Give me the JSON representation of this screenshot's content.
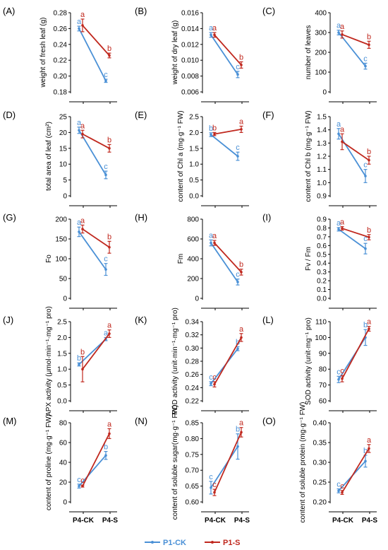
{
  "legend": {
    "items": [
      {
        "name": "P1-CK",
        "color": "#4a90d6"
      },
      {
        "name": "P1-S",
        "color": "#c0281e"
      }
    ]
  },
  "x_categories": [
    "P4-CK",
    "P4-S"
  ],
  "chart_data": [
    {
      "letter": "(A)",
      "type": "line",
      "ylabel": "weight of fresh leaf (g)",
      "ylim": [
        0.18,
        0.28
      ],
      "yticks": [
        "0.18",
        "0.20",
        "0.22",
        "0.24",
        "0.26",
        "0.28"
      ],
      "series": [
        {
          "name": "P1-CK",
          "values": [
            0.26,
            0.194
          ],
          "errors": [
            0.003,
            0.002
          ],
          "sig": [
            "a",
            "c"
          ]
        },
        {
          "name": "P1-S",
          "values": [
            0.264,
            0.226
          ],
          "errors": [
            0.008,
            0.003
          ],
          "sig": [
            "a",
            "b"
          ]
        }
      ]
    },
    {
      "letter": "(B)",
      "type": "line",
      "ylabel": "weight of dry leaf (g)",
      "ylim": [
        0.006,
        0.016
      ],
      "yticks": [
        "0.006",
        "0.008",
        "0.010",
        "0.012",
        "0.014",
        "0.016"
      ],
      "series": [
        {
          "name": "P1-CK",
          "values": [
            0.0132,
            0.0082
          ],
          "errors": [
            0.0003,
            0.0004
          ],
          "sig": [
            "a",
            "c"
          ]
        },
        {
          "name": "P1-S",
          "values": [
            0.0132,
            0.0094
          ],
          "errors": [
            0.0003,
            0.0004
          ],
          "sig": [
            "a",
            "b"
          ]
        }
      ]
    },
    {
      "letter": "(C)",
      "type": "line",
      "ylabel": "number of leaves",
      "ylim": [
        0,
        400
      ],
      "yticks": [
        "0",
        "100",
        "200",
        "300",
        "400"
      ],
      "series": [
        {
          "name": "P1-CK",
          "values": [
            300,
            130
          ],
          "errors": [
            12,
            15
          ],
          "sig": [
            "a",
            "c"
          ]
        },
        {
          "name": "P1-S",
          "values": [
            290,
            238
          ],
          "errors": [
            18,
            18
          ],
          "sig": [
            "a",
            "b"
          ]
        }
      ]
    },
    {
      "letter": "(D)",
      "type": "line",
      "ylabel": "total area of leaf (cm²)",
      "ylim": [
        0,
        25
      ],
      "yticks": [
        "0",
        "5",
        "10",
        "15",
        "20",
        "25"
      ],
      "series": [
        {
          "name": "P1-CK",
          "values": [
            20.7,
            6.6
          ],
          "errors": [
            1.0,
            1.2
          ],
          "sig": [
            "a",
            "c"
          ]
        },
        {
          "name": "P1-S",
          "values": [
            19.5,
            15.0
          ],
          "errors": [
            1.2,
            1.2
          ],
          "sig": [
            "a",
            "b"
          ]
        }
      ]
    },
    {
      "letter": "(E)",
      "type": "line",
      "ylabel": "content of Chl a (mg·g⁻¹ FW)",
      "ylim": [
        0.0,
        2.5
      ],
      "yticks": [
        "0.0",
        "0.5",
        "1.0",
        "1.5",
        "2.0",
        "2.5"
      ],
      "series": [
        {
          "name": "P1-CK",
          "values": [
            1.93,
            1.25
          ],
          "errors": [
            0.06,
            0.13
          ],
          "sig": [
            "b",
            "c"
          ]
        },
        {
          "name": "P1-S",
          "values": [
            1.95,
            2.1
          ],
          "errors": [
            0.05,
            0.1
          ],
          "sig": [
            "b",
            "a"
          ]
        }
      ]
    },
    {
      "letter": "(F)",
      "type": "line",
      "ylabel": "content of Chl b (mg·g⁻¹ FW)",
      "ylim": [
        0.9,
        1.5
      ],
      "yticks": [
        "0.9",
        "1.0",
        "1.1",
        "1.2",
        "1.3",
        "1.4",
        "1.5"
      ],
      "series": [
        {
          "name": "P1-CK",
          "values": [
            1.37,
            1.05
          ],
          "errors": [
            0.04,
            0.05
          ],
          "sig": [
            "a",
            "c"
          ]
        },
        {
          "name": "P1-S",
          "values": [
            1.31,
            1.17
          ],
          "errors": [
            0.06,
            0.03
          ],
          "sig": [
            "a",
            "b"
          ]
        }
      ]
    },
    {
      "letter": "(G)",
      "type": "line",
      "ylabel": "Fo",
      "ylim": [
        0,
        200
      ],
      "yticks": [
        "0",
        "50",
        "100",
        "150",
        "200"
      ],
      "series": [
        {
          "name": "P1-CK",
          "values": [
            168,
            73
          ],
          "errors": [
            12,
            15
          ],
          "sig": [
            "a",
            "c"
          ]
        },
        {
          "name": "P1-S",
          "values": [
            175,
            129
          ],
          "errors": [
            10,
            15
          ],
          "sig": [
            "a",
            "b"
          ]
        }
      ]
    },
    {
      "letter": "(H)",
      "type": "line",
      "ylabel": "Fm",
      "ylim": [
        0,
        800
      ],
      "yticks": [
        "0",
        "200",
        "400",
        "600",
        "800"
      ],
      "series": [
        {
          "name": "P1-CK",
          "values": [
            560,
            165
          ],
          "errors": [
            30,
            30
          ],
          "sig": [
            "a",
            "c"
          ]
        },
        {
          "name": "P1-S",
          "values": [
            560,
            265
          ],
          "errors": [
            25,
            30
          ],
          "sig": [
            "a",
            "b"
          ]
        }
      ]
    },
    {
      "letter": "(I)",
      "type": "line",
      "ylabel": "Fv / Fm",
      "ylim": [
        0.0,
        0.9
      ],
      "yticks": [
        "0.0",
        "0.1",
        "0.2",
        "0.3",
        "0.4",
        "0.5",
        "0.6",
        "0.7",
        "0.8",
        "0.9"
      ],
      "series": [
        {
          "name": "P1-CK",
          "values": [
            0.785,
            0.565
          ],
          "errors": [
            0.02,
            0.06
          ],
          "sig": [
            "a",
            "c"
          ]
        },
        {
          "name": "P1-S",
          "values": [
            0.795,
            0.695
          ],
          "errors": [
            0.02,
            0.03
          ],
          "sig": [
            "a",
            "b"
          ]
        }
      ]
    },
    {
      "letter": "(J)",
      "type": "line",
      "ylabel": "APX activity (μmol·min⁻¹·mg⁻¹ pro)",
      "ylim": [
        0.0,
        2.5
      ],
      "yticks": [
        "0.0",
        "0.5",
        "1.0",
        "1.5",
        "2.0",
        "2.5"
      ],
      "series": [
        {
          "name": "P1-CK",
          "values": [
            1.15,
            1.95
          ],
          "errors": [
            0.05,
            0.05
          ],
          "sig": [
            "b",
            "a"
          ]
        },
        {
          "name": "P1-S",
          "values": [
            1.0,
            2.12
          ],
          "errors": [
            0.4,
            0.12
          ],
          "sig": [
            "b",
            "a"
          ]
        }
      ]
    },
    {
      "letter": "(K)",
      "type": "line",
      "ylabel": "POD activity (unit·min⁻¹·mg⁻¹ pro)",
      "ylim": [
        0.22,
        0.34
      ],
      "yticks": [
        "0.22",
        "0.24",
        "0.26",
        "0.28",
        "0.30",
        "0.32",
        "0.34"
      ],
      "series": [
        {
          "name": "P1-CK",
          "values": [
            0.246,
            0.299
          ],
          "errors": [
            0.003,
            0.003
          ],
          "sig": [
            "c",
            "b"
          ]
        },
        {
          "name": "P1-S",
          "values": [
            0.245,
            0.316
          ],
          "errors": [
            0.004,
            0.006
          ],
          "sig": [
            "c",
            "a"
          ]
        }
      ]
    },
    {
      "letter": "(L)",
      "type": "line",
      "ylabel": "SOD activity (unit·mg⁻¹ pro)",
      "ylim": [
        60,
        110
      ],
      "yticks": [
        "60",
        "70",
        "80",
        "90",
        "100",
        "110"
      ],
      "series": [
        {
          "name": "P1-CK",
          "values": [
            73.5,
            100
          ],
          "errors": [
            2,
            5
          ],
          "sig": [
            "c",
            "b"
          ]
        },
        {
          "name": "P1-S",
          "values": [
            74,
            105.5
          ],
          "errors": [
            2,
            1.5
          ],
          "sig": [
            "c",
            "a"
          ]
        }
      ]
    },
    {
      "letter": "(M)",
      "type": "line",
      "ylabel": "content of proline (mg·g⁻¹ FW)",
      "ylim": [
        0,
        80
      ],
      "yticks": [
        "0",
        "20",
        "40",
        "60",
        "80"
      ],
      "series": [
        {
          "name": "P1-CK",
          "values": [
            16,
            47
          ],
          "errors": [
            2,
            4
          ],
          "sig": [
            "c",
            "b"
          ]
        },
        {
          "name": "P1-S",
          "values": [
            16,
            69
          ],
          "errors": [
            1,
            5
          ],
          "sig": [
            "c",
            "a"
          ]
        }
      ]
    },
    {
      "letter": "(N)",
      "type": "line",
      "ylabel": "content of soluble sugar(mg·g⁻¹ FW)",
      "ylim": [
        0.6,
        0.85
      ],
      "yticks": [
        "0.60",
        "0.65",
        "0.70",
        "0.75",
        "0.80",
        "0.85"
      ],
      "series": [
        {
          "name": "P1-CK",
          "values": [
            0.645,
            0.775
          ],
          "errors": [
            0.02,
            0.04
          ],
          "sig": [
            "c",
            "b"
          ]
        },
        {
          "name": "P1-S",
          "values": [
            0.63,
            0.82
          ],
          "errors": [
            0.01,
            0.015
          ],
          "sig": [
            "c",
            "a"
          ]
        }
      ]
    },
    {
      "letter": "(O)",
      "type": "line",
      "ylabel": "content of soluble protein (mg·g⁻¹ FW)",
      "ylim": [
        0.2,
        0.4
      ],
      "yticks": [
        "0.20",
        "0.25",
        "0.30",
        "0.35",
        "0.40"
      ],
      "series": [
        {
          "name": "P1-CK",
          "values": [
            0.228,
            0.303
          ],
          "errors": [
            0.005,
            0.015
          ],
          "sig": [
            "c",
            "b"
          ]
        },
        {
          "name": "P1-S",
          "values": [
            0.224,
            0.335
          ],
          "errors": [
            0.005,
            0.01
          ],
          "sig": [
            "c",
            "a"
          ]
        }
      ]
    }
  ]
}
